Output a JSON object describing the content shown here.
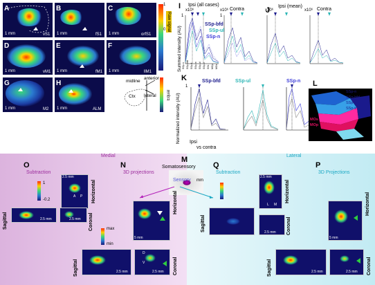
{
  "panels_top": [
    {
      "letter": "A",
      "region": "vS1",
      "scale": "1 mm"
    },
    {
      "letter": "B",
      "region": "fS1",
      "scale": "1 mm"
    },
    {
      "letter": "C",
      "region": "orfS1",
      "scale": "1 mm"
    },
    {
      "letter": "D",
      "region": "vM1",
      "scale": "1 mm"
    },
    {
      "letter": "E",
      "region": "fM1",
      "scale": "1 mm"
    },
    {
      "letter": "F",
      "region": "llM1",
      "scale": "1 mm"
    },
    {
      "letter": "G",
      "region": "M2",
      "scale": "1 mm"
    },
    {
      "letter": "H",
      "region": "ALM",
      "scale": "1 mm"
    }
  ],
  "colorbar_top": {
    "max": "1",
    "min": "0",
    "label_top": "Raw signal",
    "label_bottom": "Equal"
  },
  "schematic": {
    "midline": "midline",
    "anterior": "anterior",
    "lateral": "lateral",
    "ctx": "Ctx"
  },
  "panel_I": {
    "letter": "I",
    "title_ipsi": "Ipsi (all cases)",
    "title_contra": "Contra",
    "exp_left": "x10⁶",
    "exp_right": "x10⁶",
    "tick_top_left": "1",
    "tick_top_right": "1",
    "legend": [
      "SSp-bfd",
      "SSp-ul",
      "SSp-n"
    ]
  },
  "panel_J": {
    "letter": "J",
    "title_ipsi": "Ipsi (mean)",
    "title_contra": "Contra",
    "exp_left": "x10⁶",
    "exp_right": "x10⁶"
  },
  "panel_K": {
    "letter": "K",
    "legend": [
      "SSp-bfd",
      "SSp-ul",
      "SSp-n"
    ],
    "ipsi": "Ipsi",
    "vs": "vs contra",
    "tick": "1"
  },
  "panel_L": {
    "letter": "L",
    "labels": [
      "SSp-n",
      "SSp-bfd",
      "SSp-un",
      "SSp-tr",
      "MOs",
      "MOp"
    ]
  },
  "ylabel_top": "Summed intensity (AU)",
  "ylabel_bottom": "Normalized intensity (AU)",
  "panel_M": {
    "letter": "M",
    "title": "Somatosensory",
    "sub": "Sensory",
    "scale": "mm"
  },
  "medial": {
    "title": "Medial",
    "O": {
      "letter": "O",
      "title": "Subtraction",
      "cb_max": "1",
      "cb_min": "-0.2",
      "scale1": "2.5 mm",
      "scale2": "2.5 mm",
      "scale3": "2.5 mm",
      "sagittal": "Sagittal",
      "horizontal": "Horizontal",
      "coronal": "Coronal"
    },
    "N": {
      "letter": "N",
      "title": "3D projections",
      "cb_max": "max",
      "cb_min": "min",
      "scale1": "5 mm",
      "scale2": "2.5 mm",
      "scale3": "2.5 mm",
      "sagittal": "Sagittal",
      "horizontal": "Horizontal",
      "coronal": "Coronal"
    }
  },
  "lateral": {
    "title": "Lateral",
    "Q": {
      "letter": "Q",
      "title": "Subtraction",
      "scale1": "2.5 mm",
      "scale2": "2.5 mm",
      "sagittal": "Sagittal",
      "horizontal": "Horizontal",
      "coronal": "Coronal"
    },
    "P": {
      "letter": "P",
      "title": "3D Projections",
      "scale1": "5 mm",
      "scale2": "2.5 mm",
      "scale3": "2.5 mm",
      "sagittal": "Sagittal",
      "horizontal": "Horizontal",
      "coronal": "Coronal"
    }
  },
  "axis_letters": {
    "A": "A",
    "P": "P",
    "D": "D",
    "V": "V",
    "L": "L",
    "M": "M"
  },
  "colors": {
    "medial_bg": "#e9c9ea",
    "medial_title": "#9b2b9c",
    "lateral_bg": "#cdeef4",
    "lateral_title": "#19a7c3",
    "ssp_bfd": "#1a1a8c",
    "ssp_ul": "#2bb5b5",
    "ssp_n": "#3b3bd8"
  }
}
